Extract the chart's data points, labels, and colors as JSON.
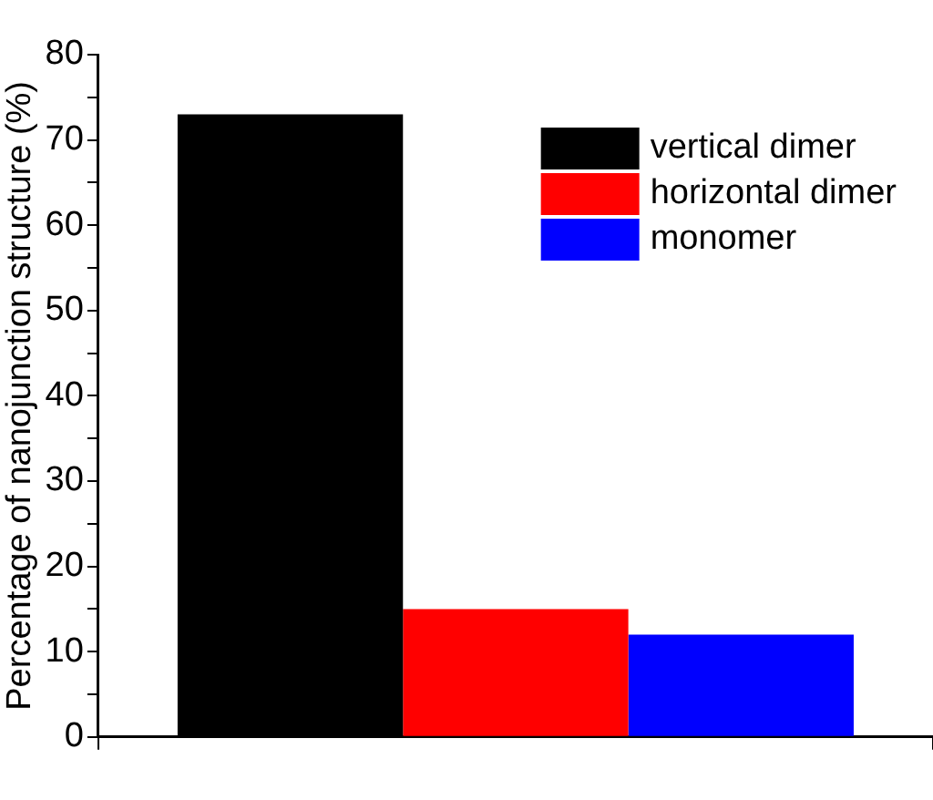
{
  "chart_data": {
    "type": "bar",
    "ylabel": "Percentage of nanojunction structure (%)",
    "categories": [
      null
    ],
    "series": [
      {
        "name": "vertical dimer",
        "color": "#000000",
        "values": [
          73
        ]
      },
      {
        "name": "horizontal dimer",
        "color": "#ff0000",
        "values": [
          15
        ]
      },
      {
        "name": "monomer",
        "color": "#0000ff",
        "values": [
          12
        ]
      }
    ],
    "ylim": [
      0,
      80
    ],
    "yticks": [
      0,
      {
        "value": 5,
        "label": null
      },
      10,
      {
        "value": 15,
        "label": null
      },
      20,
      {
        "value": 25,
        "label": null
      },
      30,
      {
        "value": 35,
        "label": null
      },
      40,
      {
        "value": 45,
        "label": null
      },
      50,
      {
        "value": 55,
        "label": null
      },
      60,
      {
        "value": 65,
        "label": null
      },
      70,
      {
        "value": 75,
        "label": null
      },
      80
    ],
    "grid": false,
    "legend": "top right"
  }
}
